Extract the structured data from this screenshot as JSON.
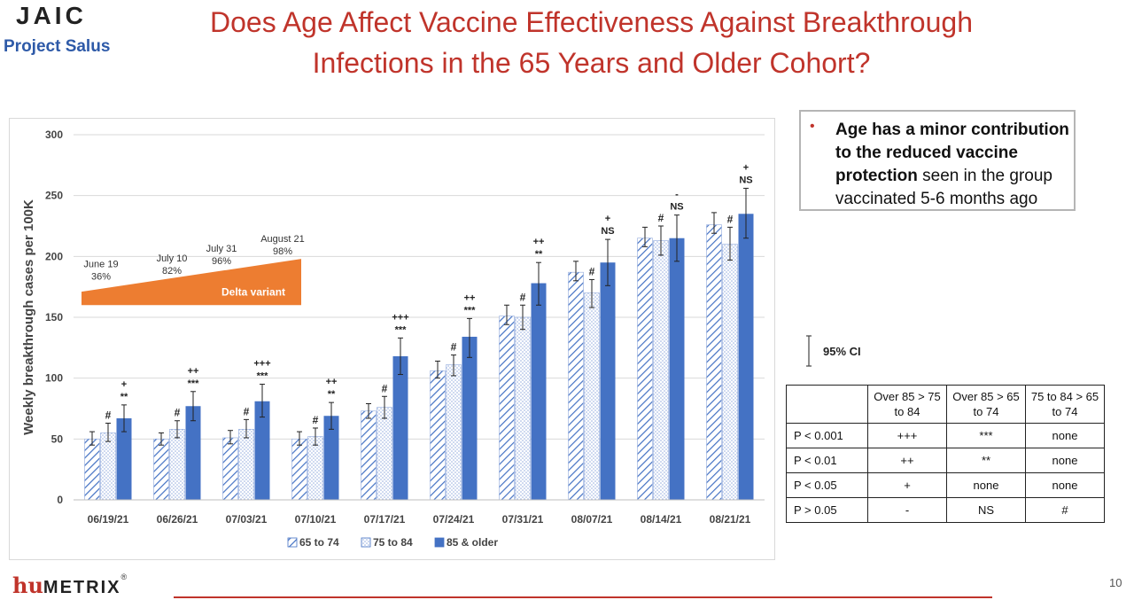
{
  "header": {
    "logo_text": "JAIC",
    "project": "Project Salus",
    "title_line1": "Does Age Affect Vaccine Effectiveness Against Breakthrough",
    "title_line2": "Infections in the 65 Years and Older Cohort?"
  },
  "colors": {
    "title": "#c0342b",
    "project": "#2e5aa8",
    "series_hatch": "#4472c4",
    "series_dots": "#8fa9dc",
    "series_solid": "#4472c4",
    "delta_band": "#ed7d31",
    "footer": "#c0342b"
  },
  "chart_data": {
    "type": "bar",
    "title": "",
    "xlabel": "",
    "ylabel": "Weekly breakthrough cases per 100K",
    "ylim": [
      0,
      300
    ],
    "yticks": [
      0,
      50,
      100,
      150,
      200,
      250,
      300
    ],
    "grid": true,
    "legend_position": "bottom",
    "categories": [
      "06/19/21",
      "06/26/21",
      "07/03/21",
      "07/10/21",
      "07/17/21",
      "07/24/21",
      "07/31/21",
      "08/07/21",
      "08/14/21",
      "08/21/21"
    ],
    "series": [
      {
        "name": "65 to 74",
        "pattern": "hatch",
        "values": [
          50,
          50,
          51,
          50,
          73,
          106,
          151,
          187,
          215,
          226
        ],
        "ci_low": [
          45,
          45,
          46,
          45,
          67,
          100,
          144,
          180,
          208,
          219
        ],
        "ci_high": [
          56,
          55,
          57,
          56,
          79,
          114,
          160,
          196,
          224,
          236
        ]
      },
      {
        "name": "75 to 84",
        "pattern": "dots",
        "values": [
          55,
          58,
          58,
          52,
          76,
          111,
          150,
          170,
          213,
          210
        ],
        "ci_low": [
          48,
          51,
          51,
          45,
          67,
          102,
          140,
          158,
          201,
          197
        ],
        "ci_high": [
          63,
          65,
          66,
          59,
          85,
          119,
          160,
          181,
          225,
          224
        ]
      },
      {
        "name": "85 & older",
        "pattern": "solid",
        "values": [
          67,
          77,
          81,
          69,
          118,
          134,
          178,
          195,
          215,
          235
        ],
        "ci_low": [
          56,
          65,
          68,
          58,
          103,
          117,
          160,
          176,
          196,
          215
        ],
        "ci_high": [
          78,
          89,
          95,
          80,
          133,
          149,
          195,
          214,
          234,
          256
        ]
      }
    ],
    "annotations": [
      {
        "hash": "#",
        "sig1": "+",
        "sig2": "**"
      },
      {
        "hash": "#",
        "sig1": "++",
        "sig2": "***"
      },
      {
        "hash": "#",
        "sig1": "+++",
        "sig2": "***"
      },
      {
        "hash": "#",
        "sig1": "++",
        "sig2": "**"
      },
      {
        "hash": "#",
        "sig1": "+++",
        "sig2": "***"
      },
      {
        "hash": "#",
        "sig1": "++",
        "sig2": "***"
      },
      {
        "hash": "#",
        "sig1": "++",
        "sig2": "**"
      },
      {
        "hash": "#",
        "sig1": "+",
        "sig2": "NS"
      },
      {
        "hash": "#",
        "sig1": "-",
        "sig2": "NS"
      },
      {
        "hash": "#",
        "sig1": "+",
        "sig2": "NS"
      }
    ],
    "delta_variant": {
      "label": "Delta variant",
      "milestones": [
        {
          "date": "June 19",
          "pct": "36%"
        },
        {
          "date": "July 10",
          "pct": "82%"
        },
        {
          "date": "July 31",
          "pct": "96%"
        },
        {
          "date": "August 21",
          "pct": "98%"
        }
      ]
    }
  },
  "sidebar": {
    "bullet_bold": "Age has a minor contribution to the reduced vaccine protection",
    "bullet_rest": " seen in the group vaccinated 5-6 months ago",
    "ci_label": "95% CI"
  },
  "ptable": {
    "headers": [
      "",
      "Over 85 > 75 to 84",
      "Over 85 > 65 to 74",
      "75 to 84 > 65 to 74"
    ],
    "rows": [
      [
        "P < 0.001",
        "+++",
        "***",
        "none"
      ],
      [
        "P < 0.01",
        "++",
        "**",
        "none"
      ],
      [
        "P < 0.05",
        "+",
        "none",
        "none"
      ],
      [
        "P > 0.05",
        "-",
        "NS",
        "#"
      ]
    ]
  },
  "footer": {
    "brand_hu": "hu",
    "brand_metrix": "METRIX",
    "brand_reg": "®",
    "page_number": "10"
  }
}
